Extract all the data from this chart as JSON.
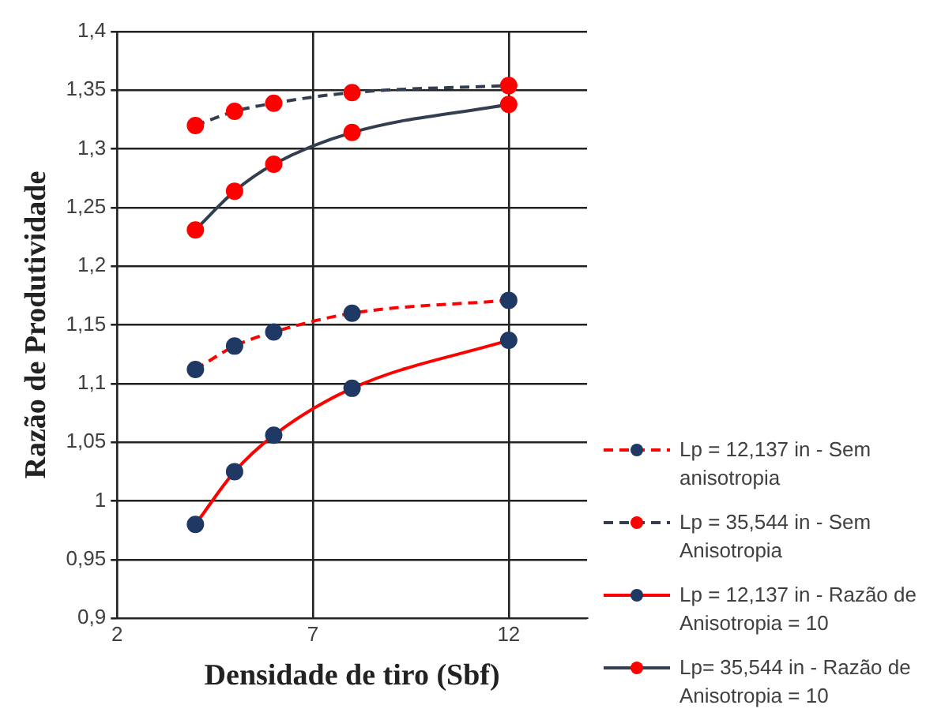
{
  "chart_data": {
    "type": "line",
    "xlabel": "Densidade de tiro (Sbf)",
    "ylabel": "Razão de Produtividade",
    "x": [
      4,
      5,
      6,
      8,
      12
    ],
    "xlim": [
      2,
      14
    ],
    "xticks": [
      2,
      7,
      12
    ],
    "ylim": [
      0.9,
      1.4
    ],
    "yticks": [
      {
        "value": 0.9,
        "label": "0,9"
      },
      {
        "value": 0.95,
        "label": "0,95"
      },
      {
        "value": 1,
        "label": "1"
      },
      {
        "value": 1.05,
        "label": "1,05"
      },
      {
        "value": 1.1,
        "label": "1,1"
      },
      {
        "value": 1.15,
        "label": "1,15"
      },
      {
        "value": 1.2,
        "label": "1,2"
      },
      {
        "value": 1.25,
        "label": "1,25"
      },
      {
        "value": 1.3,
        "label": "1,3"
      },
      {
        "value": 1.35,
        "label": "1,35"
      },
      {
        "value": 1.4,
        "label": "1,4"
      }
    ],
    "grid": true,
    "legend": "right",
    "marker": "circle",
    "series": [
      {
        "name": "Lp = 12,137 in - Sem anisotropia",
        "color": "#ff0000",
        "colors": [
          "#1f3864",
          "#1f3864",
          "#1f3864",
          "#1f3864",
          "#1f3864"
        ],
        "line_style": "dashed",
        "values": [
          1.112,
          1.132,
          1.144,
          1.16,
          1.171
        ]
      },
      {
        "name": "Lp = 35,544 in - Sem Anisotropia",
        "color": "#333f50",
        "colors": [
          "#ff0000",
          "#ff0000",
          "#ff0000",
          "#ff0000",
          "#ff0000"
        ],
        "line_style": "dashed",
        "values": [
          1.32,
          1.332,
          1.339,
          1.348,
          1.354
        ]
      },
      {
        "name": "Lp = 12,137 in - Razão de Anisotropia = 10",
        "color": "#ff0000",
        "colors": [
          "#1f3864",
          "#1f3864",
          "#1f3864",
          "#1f3864",
          "#1f3864"
        ],
        "line_style": "solid",
        "values": [
          0.98,
          1.025,
          1.056,
          1.096,
          1.137
        ]
      },
      {
        "name": "Lp= 35,544 in - Razão de Anisotropia = 10",
        "color": "#333f50",
        "colors": [
          "#ff0000",
          "#ff0000",
          "#ff0000",
          "#ff0000",
          "#ff0000"
        ],
        "line_style": "solid",
        "values": [
          1.231,
          1.264,
          1.287,
          1.314,
          1.338
        ]
      }
    ]
  }
}
